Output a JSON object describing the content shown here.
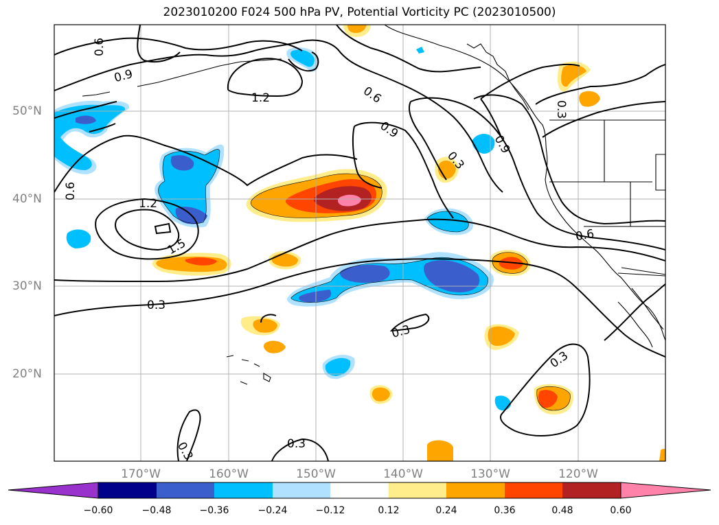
{
  "title": "2023010200 F024 500 hPa PV, Potential Vorticity PC (2023010500)",
  "map": {
    "lat_labels": [
      "50°N",
      "40°N",
      "30°N",
      "20°N"
    ],
    "lon_labels": [
      "170°W",
      "160°W",
      "150°W",
      "140°W",
      "130°W",
      "120°W"
    ],
    "contour_labels": [
      "0.6",
      "0.9",
      "1.2",
      "0.6",
      "0.9",
      "0.3",
      "0.9",
      "0.3",
      "0.6",
      "1.2",
      "1.5",
      "0.6",
      "0.3",
      "0.3",
      "0.3",
      "0.3",
      "0.3"
    ],
    "colors": {
      "gridline": "#b0b0b0",
      "grid_label": "#808080",
      "contour": "#000000"
    }
  },
  "colorbar": {
    "ticks": [
      "−0.60",
      "−0.48",
      "−0.36",
      "−0.24",
      "−0.12",
      "0.12",
      "0.24",
      "0.36",
      "0.48",
      "0.60"
    ],
    "colors": [
      "#9932cc",
      "#00008b",
      "#3a5fcd",
      "#00bfff",
      "#b0e2ff",
      "#ffffff",
      "#ffec8b",
      "#ffa500",
      "#ff4500",
      "#b22222",
      "#ff82ab"
    ]
  }
}
